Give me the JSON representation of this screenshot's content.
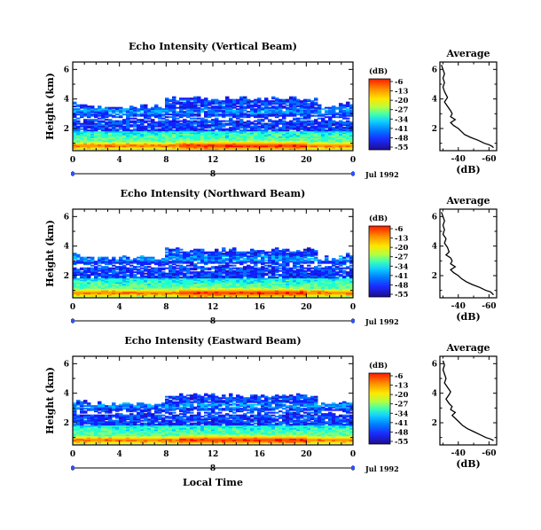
{
  "figure": {
    "xlabel": "Local Time",
    "date": "Jul 1992",
    "timeline_label": "8"
  },
  "colorbar": {
    "unit": "(dB)",
    "ticks": [
      "-6",
      "-13",
      "-20",
      "-27",
      "-34",
      "-41",
      "-48",
      "-55"
    ],
    "colors": [
      "#ff0000",
      "#ff5000",
      "#ff9a00",
      "#ffe000",
      "#d4ff30",
      "#80ff80",
      "#20ffd0",
      "#00c0ff",
      "#0070ff",
      "#1020ff",
      "#2010c0",
      "#201080"
    ]
  },
  "chart_data": [
    {
      "type": "heatmap",
      "title": "Echo Intensity (Vertical Beam)",
      "ylabel": "Height (km)",
      "xlim": [
        0,
        24
      ],
      "ylim": [
        0.5,
        6.5
      ],
      "xticks": [
        "0",
        "4",
        "8",
        "12",
        "16",
        "20",
        "0"
      ],
      "yticks": [
        "2",
        "4",
        "6"
      ],
      "colorscale_db": [
        -55,
        -6
      ],
      "echo_top_km": 4.0,
      "strong_layer_km": 0.8
    },
    {
      "type": "line",
      "title": "Average",
      "xlabel": "(dB)",
      "xlim": [
        -28,
        -65
      ],
      "ylim": [
        0.5,
        6.5
      ],
      "xticks": [
        "-40",
        "-60"
      ],
      "yticks": [
        "2",
        "4",
        "6"
      ],
      "x": [
        -29,
        -30,
        -31,
        -30,
        -31,
        -30,
        -31,
        -32,
        -33,
        -31,
        -33,
        -35,
        -36,
        -35,
        -38,
        -35,
        -37,
        -40,
        -42,
        -44,
        -48,
        -53,
        -57,
        -60,
        -62,
        -63
      ],
      "y": [
        6.3,
        6.0,
        5.7,
        5.4,
        5.1,
        4.8,
        4.5,
        4.3,
        4.1,
        3.8,
        3.5,
        3.2,
        3.0,
        2.8,
        2.6,
        2.4,
        2.2,
        2.0,
        1.8,
        1.6,
        1.4,
        1.2,
        1.0,
        0.9,
        0.8,
        0.7
      ]
    },
    {
      "type": "heatmap",
      "title": "Echo Intensity (Northward Beam)",
      "ylabel": "Height (km)",
      "xlim": [
        0,
        24
      ],
      "ylim": [
        0.5,
        6.5
      ],
      "xticks": [
        "0",
        "4",
        "8",
        "12",
        "16",
        "20",
        "0"
      ],
      "yticks": [
        "2",
        "4",
        "6"
      ],
      "colorscale_db": [
        -55,
        -6
      ],
      "echo_top_km": 3.7,
      "strong_layer_km": 0.8
    },
    {
      "type": "line",
      "title": "Average",
      "xlabel": "(dB)",
      "xlim": [
        -28,
        -65
      ],
      "ylim": [
        0.5,
        6.5
      ],
      "xticks": [
        "-40",
        "-60"
      ],
      "yticks": [
        "2",
        "4",
        "6"
      ],
      "x": [
        -29,
        -30,
        -31,
        -30,
        -31,
        -30,
        -32,
        -31,
        -33,
        -34,
        -32,
        -35,
        -36,
        -35,
        -38,
        -35,
        -37,
        -40,
        -42,
        -45,
        -49,
        -54,
        -58,
        -61,
        -62,
        -63
      ],
      "y": [
        6.3,
        6.0,
        5.7,
        5.4,
        5.1,
        4.8,
        4.5,
        4.2,
        3.9,
        3.6,
        3.4,
        3.2,
        3.0,
        2.8,
        2.6,
        2.4,
        2.2,
        2.0,
        1.8,
        1.6,
        1.4,
        1.2,
        1.0,
        0.9,
        0.8,
        0.7
      ]
    },
    {
      "type": "heatmap",
      "title": "Echo Intensity (Eastward Beam)",
      "ylabel": "Height (km)",
      "xlim": [
        0,
        24
      ],
      "ylim": [
        0.5,
        6.5
      ],
      "xticks": [
        "0",
        "4",
        "8",
        "12",
        "16",
        "20",
        "0"
      ],
      "yticks": [
        "2",
        "4",
        "6"
      ],
      "colorscale_db": [
        -55,
        -6
      ],
      "echo_top_km": 3.8,
      "strong_layer_km": 0.8
    },
    {
      "type": "line",
      "title": "Average",
      "xlabel": "(dB)",
      "xlim": [
        -28,
        -65
      ],
      "ylim": [
        0.5,
        6.5
      ],
      "xticks": [
        "-40",
        "-60"
      ],
      "yticks": [
        "2",
        "4",
        "6"
      ],
      "x": [
        -30,
        -31,
        -30,
        -31,
        -32,
        -31,
        -33,
        -35,
        -34,
        -32,
        -34,
        -36,
        -35,
        -38,
        -36,
        -38,
        -41,
        -43,
        -46,
        -50,
        -54,
        -58,
        -61,
        -63
      ],
      "y": [
        6.2,
        5.9,
        5.6,
        5.3,
        5.0,
        4.7,
        4.4,
        4.1,
        3.9,
        3.6,
        3.3,
        3.1,
        2.9,
        2.7,
        2.5,
        2.3,
        2.0,
        1.8,
        1.6,
        1.4,
        1.2,
        1.0,
        0.9,
        0.8
      ]
    }
  ]
}
